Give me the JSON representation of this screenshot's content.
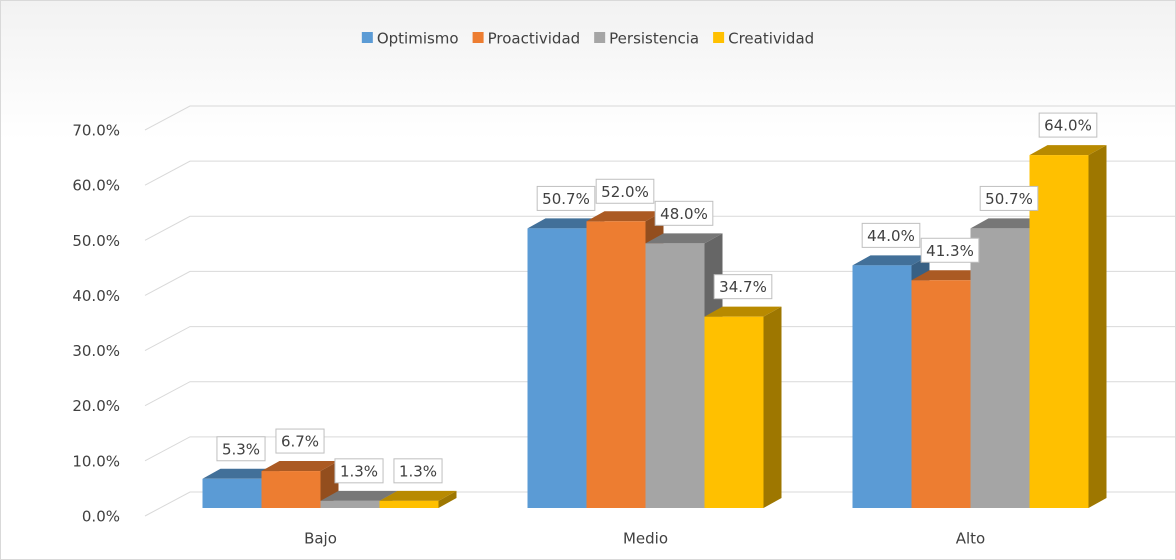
{
  "chart_data": {
    "type": "bar3d",
    "categories": [
      "Bajo",
      "Medio",
      "Alto"
    ],
    "series": [
      {
        "name": "Optimismo",
        "color": "#5b9bd5",
        "values": [
          5.3,
          50.7,
          44.0
        ],
        "value_labels": [
          "5.3%",
          "50.7%",
          "44.0%"
        ]
      },
      {
        "name": "Proactividad",
        "color": "#ed7d31",
        "values": [
          6.7,
          52.0,
          41.3
        ],
        "value_labels": [
          "6.7%",
          "52.0%",
          "41.3%"
        ]
      },
      {
        "name": "Persistencia",
        "color": "#a5a5a5",
        "values": [
          1.3,
          48.0,
          50.7
        ],
        "value_labels": [
          "1.3%",
          "48.0%",
          "50.7%"
        ]
      },
      {
        "name": "Creatividad",
        "color": "#ffc000",
        "values": [
          1.3,
          34.7,
          64.0
        ],
        "value_labels": [
          "1.3%",
          "34.7%",
          "64.0%"
        ]
      }
    ],
    "ylim": [
      0,
      70
    ],
    "yticks": [
      {
        "value": 0,
        "label": "0.0%"
      },
      {
        "value": 10,
        "label": "10.0%"
      },
      {
        "value": 20,
        "label": "20.0%"
      },
      {
        "value": 30,
        "label": "30.0%"
      },
      {
        "value": 40,
        "label": "40.0%"
      },
      {
        "value": 50,
        "label": "50.0%"
      },
      {
        "value": 60,
        "label": "60.0%"
      },
      {
        "value": 70,
        "label": "70.0%"
      }
    ],
    "grid": true,
    "legend": "top"
  }
}
